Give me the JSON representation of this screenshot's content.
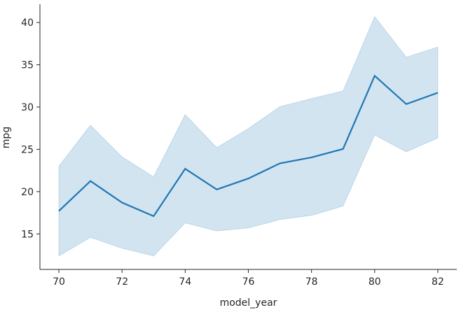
{
  "chart_data": {
    "type": "line",
    "title": "",
    "xlabel": "model_year",
    "ylabel": "mpg",
    "x": [
      70,
      71,
      72,
      73,
      74,
      75,
      76,
      77,
      78,
      79,
      80,
      81,
      82
    ],
    "series": [
      {
        "values": [
          17.7,
          21.25,
          18.7,
          17.1,
          22.7,
          20.25,
          21.55,
          23.35,
          24.05,
          25.05,
          33.7,
          30.35,
          31.7
        ],
        "ci_lower": [
          12.4,
          14.6,
          13.3,
          12.4,
          16.3,
          15.35,
          15.7,
          16.7,
          17.2,
          18.3,
          26.7,
          24.7,
          26.35
        ],
        "ci_upper": [
          23.0,
          27.85,
          24.1,
          21.75,
          29.1,
          25.2,
          27.45,
          30.05,
          31.0,
          31.9,
          40.7,
          35.9,
          37.1
        ]
      }
    ],
    "xticks": [
      "70",
      "72",
      "74",
      "76",
      "78",
      "80",
      "82"
    ],
    "yticks": [
      "15",
      "20",
      "25",
      "30",
      "35",
      "40"
    ],
    "xlim": [
      69.4,
      82.6
    ],
    "ylim": [
      10.8,
      42.0
    ],
    "grid": false,
    "colors": {
      "line": "#1f77b4",
      "band": "#1f77b4"
    }
  }
}
